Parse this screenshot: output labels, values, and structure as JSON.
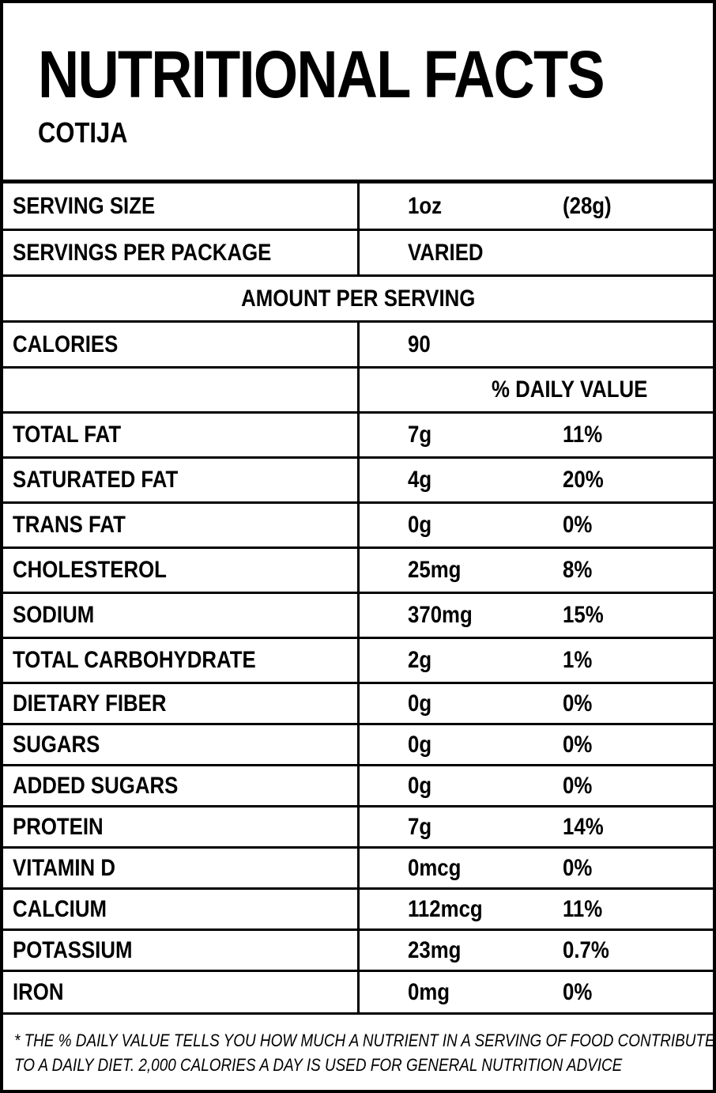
{
  "title": "NUTRITIONAL FACTS",
  "subtitle": "COTIJA",
  "serving_size": {
    "label": "SERVING SIZE",
    "value": "1oz",
    "grams": "(28g)"
  },
  "servings_per_package": {
    "label": "SERVINGS PER PACKAGE",
    "value": "VARIED"
  },
  "amount_per_serving": "AMOUNT PER SERVING",
  "calories": {
    "label": "CALORIES",
    "value": "90"
  },
  "daily_value_header": "% DAILY VALUE",
  "nutrients": [
    {
      "name": "TOTAL FAT",
      "amount": "7g",
      "dv": "11%"
    },
    {
      "name": "SATURATED FAT",
      "amount": "4g",
      "dv": "20%"
    },
    {
      "name": "TRANS FAT",
      "amount": "0g",
      "dv": "0%"
    },
    {
      "name": "CHOLESTEROL",
      "amount": "25mg",
      "dv": "8%"
    },
    {
      "name": "SODIUM",
      "amount": "370mg",
      "dv": "15%"
    },
    {
      "name": "TOTAL CARBOHYDRATE",
      "amount": "2g",
      "dv": "1%"
    },
    {
      "name": "DIETARY FIBER",
      "amount": "0g",
      "dv": "0%"
    },
    {
      "name": "SUGARS",
      "amount": "0g",
      "dv": "0%"
    },
    {
      "name": "ADDED SUGARS",
      "amount": "0g",
      "dv": "0%"
    },
    {
      "name": "PROTEIN",
      "amount": "7g",
      "dv": "14%"
    },
    {
      "name": "VITAMIN D",
      "amount": "0mcg",
      "dv": "0%"
    },
    {
      "name": "CALCIUM",
      "amount": "112mcg",
      "dv": "11%"
    },
    {
      "name": "POTASSIUM",
      "amount": "23mg",
      "dv": "0.7%"
    },
    {
      "name": "IRON",
      "amount": "0mg",
      "dv": "0%"
    }
  ],
  "footnote": [
    "* THE % DAILY VALUE TELLS YOU HOW MUCH A NUTRIENT IN A SERVING OF FOOD CONTRIBUTES",
    "TO A DAILY DIET. 2,000 CALORIES A DAY IS USED FOR GENERAL NUTRITION ADVICE"
  ]
}
